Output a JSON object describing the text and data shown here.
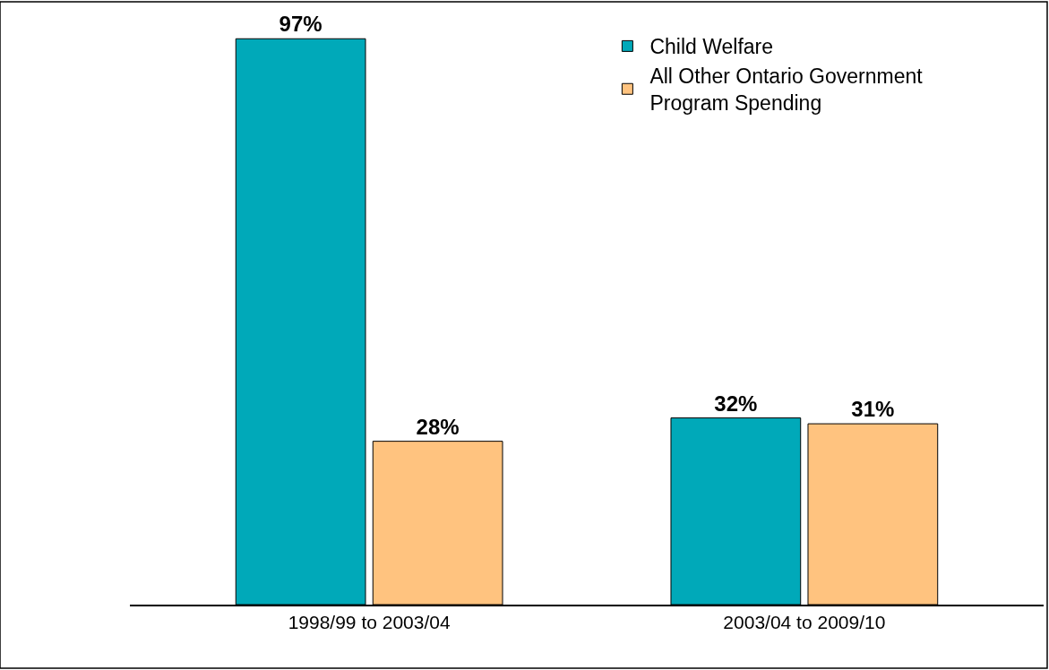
{
  "chart_data": {
    "type": "bar",
    "categories": [
      "1998/99 to 2003/04",
      "2003/04 to 2009/10"
    ],
    "series": [
      {
        "name": "Child Welfare",
        "color": "#00a9b9",
        "values": [
          97,
          32
        ],
        "value_labels": [
          "97%",
          "32%"
        ]
      },
      {
        "name": "All Other Ontario Government Program Spending",
        "color": "#ffc37f",
        "values": [
          28,
          31
        ],
        "value_labels": [
          "28%",
          "31%"
        ]
      }
    ],
    "tick_labels": "x",
    "legend": "top right"
  }
}
